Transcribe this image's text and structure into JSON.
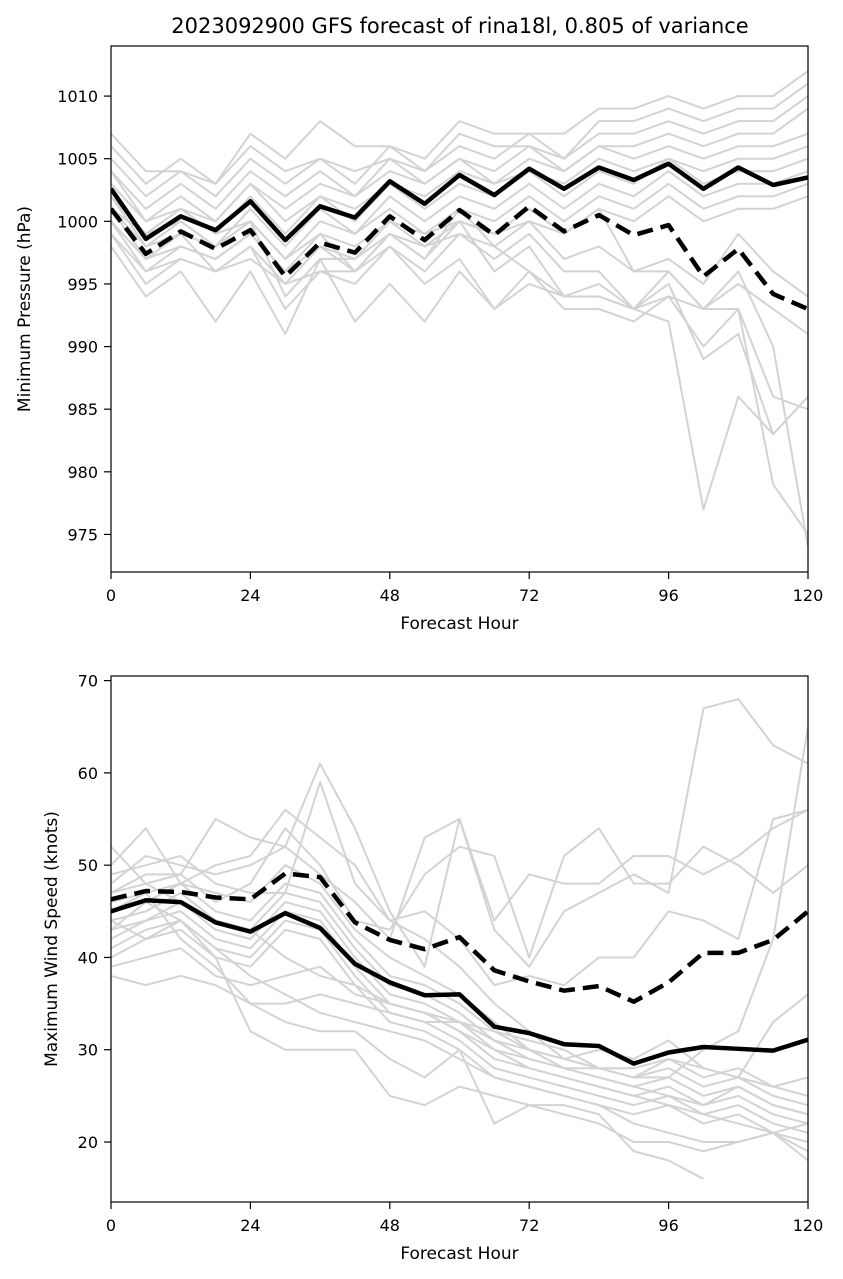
{
  "figure": {
    "title": "2023092900 GFS forecast of rina18l, 0.805 of variance"
  },
  "colors": {
    "ensemble_member": "#d3d3d3",
    "mean": "#000000",
    "dashed": "#000000"
  },
  "chart_data": [
    {
      "type": "line",
      "title": "2023092900 GFS forecast of rina18l, 0.805 of variance",
      "xlabel": "Forecast Hour",
      "ylabel": "Minimum Pressure (hPa)",
      "xlim": [
        0,
        120
      ],
      "ylim": [
        972,
        1014
      ],
      "xticks": [
        0,
        24,
        48,
        72,
        96,
        120
      ],
      "yticks": [
        975,
        980,
        985,
        990,
        995,
        1000,
        1005,
        1010
      ],
      "grid": false,
      "x": [
        0,
        6,
        12,
        18,
        24,
        30,
        36,
        42,
        48,
        54,
        60,
        66,
        72,
        78,
        84,
        90,
        96,
        102,
        108,
        114,
        120
      ],
      "series": [
        {
          "style": "solid",
          "values": [
            1002.6,
            998.6,
            1000.4,
            999.3,
            1001.6,
            998.5,
            1001.2,
            1000.3,
            1003.2,
            1001.4,
            1003.7,
            1002.1,
            1004.2,
            1002.6,
            1004.3,
            1003.3,
            1004.6,
            1002.6,
            1004.3,
            1002.9,
            1003.5
          ]
        },
        {
          "style": "dashed",
          "values": [
            1001.0,
            997.4,
            999.2,
            997.8,
            999.3,
            995.6,
            998.3,
            997.5,
            1000.4,
            998.5,
            1000.9,
            998.9,
            1001.2,
            999.2,
            1000.5,
            998.9,
            999.7,
            995.6,
            997.8,
            994.2,
            993.0
          ]
        },
        {
          "style": "member",
          "values": [
            1007,
            1004,
            1004,
            1003,
            1007,
            1005,
            1008,
            1006,
            1006,
            1005,
            1008,
            1007,
            1007,
            1007,
            1009,
            1009,
            1010,
            1009,
            1010,
            1010,
            1012
          ]
        },
        {
          "style": "member",
          "values": [
            1006,
            1003,
            1005,
            1003,
            1006,
            1004,
            1005,
            1004,
            1005,
            1004,
            1007,
            1006,
            1006,
            1005,
            1008,
            1008,
            1009,
            1008,
            1009,
            1009,
            1011
          ]
        },
        {
          "style": "member",
          "values": [
            1005,
            1002,
            1004,
            1002,
            1005,
            1003,
            1005,
            1003,
            1006,
            1004,
            1006,
            1005,
            1007,
            1005,
            1007,
            1007,
            1008,
            1007,
            1008,
            1008,
            1010
          ]
        },
        {
          "style": "member",
          "values": [
            1004,
            1001,
            1003,
            1001,
            1004,
            1002,
            1004,
            1002,
            1005,
            1003,
            1005,
            1004,
            1006,
            1004,
            1006,
            1006,
            1007,
            1006,
            1007,
            1007,
            1009
          ]
        },
        {
          "style": "member",
          "values": [
            1004,
            1000,
            1002,
            1000,
            1003,
            1001,
            1003,
            1002,
            1004,
            1003,
            1005,
            1003,
            1005,
            1004,
            1006,
            1005,
            1006,
            1005,
            1006,
            1006,
            1007
          ]
        },
        {
          "style": "member",
          "values": [
            1003,
            1000,
            1001,
            1000,
            1003,
            1000,
            1002,
            1001,
            1003,
            1002,
            1004,
            1003,
            1004,
            1003,
            1005,
            1004,
            1005,
            1004,
            1005,
            1005,
            1006
          ]
        },
        {
          "style": "member",
          "values": [
            1002,
            999,
            1001,
            999,
            1002,
            999,
            1002,
            1000,
            1003,
            1001,
            1003,
            1002,
            1004,
            1002,
            1004,
            1003,
            1005,
            1003,
            1004,
            1004,
            1005
          ]
        },
        {
          "style": "member",
          "values": [
            1001,
            998,
            1000,
            998,
            1001,
            998,
            1001,
            999,
            1002,
            1000,
            1002,
            1001,
            1003,
            1001,
            1003,
            1002,
            1004,
            1002,
            1003,
            1003,
            1004
          ]
        },
        {
          "style": "member",
          "values": [
            1000,
            997,
            999,
            998,
            1000,
            997,
            1000,
            999,
            1001,
            999,
            1001,
            1000,
            1002,
            1000,
            1002,
            1001,
            1003,
            1001,
            1002,
            1002,
            1003
          ]
        },
        {
          "style": "member",
          "values": [
            1000,
            996,
            998,
            997,
            999,
            996,
            999,
            998,
            1000,
            999,
            1000,
            999,
            1001,
            999,
            1001,
            1000,
            1002,
            1000,
            1001,
            1001,
            1002
          ]
        },
        {
          "style": "member",
          "values": [
            1001,
            999,
            1000,
            998,
            1000,
            994,
            997,
            997,
            999,
            997,
            1000,
            996,
            998,
            994,
            995,
            993,
            994,
            990,
            993,
            986,
            985
          ]
        },
        {
          "style": "member",
          "values": [
            1002,
            998,
            999,
            996,
            998,
            993,
            996,
            995,
            998,
            996,
            999,
            998,
            996,
            994,
            994,
            993,
            995,
            989,
            991,
            983,
            986
          ]
        },
        {
          "style": "member",
          "values": [
            999,
            996,
            997,
            996,
            997,
            995,
            996,
            996,
            998,
            995,
            997,
            993,
            996,
            993,
            993,
            992,
            994,
            993,
            993,
            979,
            975
          ]
        },
        {
          "style": "member",
          "values": [
            998,
            994,
            996,
            992,
            996,
            991,
            997,
            992,
            995,
            992,
            996,
            993,
            995,
            994,
            994,
            993,
            992,
            977,
            986,
            983,
            986
          ]
        },
        {
          "style": "member",
          "values": [
            1001,
            997,
            998,
            997,
            999,
            996,
            998,
            997,
            1000,
            998,
            1000,
            999,
            1000,
            999,
            1001,
            996,
            996,
            993,
            996,
            990,
            974
          ]
        },
        {
          "style": "member",
          "values": [
            1002,
            999,
            1001,
            999,
            1000,
            997,
            999,
            996,
            999,
            997,
            1001,
            998,
            1000,
            997,
            998,
            996,
            997,
            995,
            999,
            996,
            994
          ]
        },
        {
          "style": "member",
          "values": [
            999,
            995,
            997,
            996,
            998,
            995,
            998,
            996,
            999,
            998,
            999,
            997,
            999,
            996,
            996,
            993,
            996,
            993,
            995,
            993,
            991
          ]
        }
      ]
    },
    {
      "type": "line",
      "xlabel": "Forecast Hour",
      "ylabel": "Maximum Wind Speed (knots)",
      "xlim": [
        0,
        120
      ],
      "ylim": [
        13.5,
        70.5
      ],
      "xticks": [
        0,
        24,
        48,
        72,
        96,
        120
      ],
      "yticks": [
        20,
        30,
        40,
        50,
        60,
        70
      ],
      "grid": false,
      "x": [
        0,
        6,
        12,
        18,
        24,
        30,
        36,
        42,
        48,
        54,
        60,
        66,
        72,
        78,
        84,
        90,
        96,
        102,
        108,
        114,
        120
      ],
      "series": [
        {
          "style": "solid",
          "values": [
            45.0,
            46.2,
            46.0,
            43.8,
            42.8,
            44.8,
            43.2,
            39.3,
            37.3,
            35.9,
            36.0,
            32.5,
            31.8,
            30.6,
            30.4,
            28.5,
            29.7,
            30.3,
            30.1,
            29.9,
            31.1
          ]
        },
        {
          "style": "dashed",
          "values": [
            46.3,
            47.2,
            47.1,
            46.5,
            46.3,
            49.1,
            48.7,
            43.8,
            41.9,
            40.9,
            42.2,
            38.6,
            37.4,
            36.4,
            36.9,
            35.2,
            37.3,
            40.5,
            40.5,
            41.9,
            45.0
          ]
        },
        {
          "style": "member",
          "values": [
            52,
            48,
            49,
            55,
            53,
            52,
            61,
            54,
            45,
            39,
            55,
            43,
            39,
            45,
            47,
            49,
            47,
            67,
            68,
            63,
            61
          ]
        },
        {
          "style": "member",
          "values": [
            50,
            54,
            48,
            50,
            51,
            56,
            53,
            50,
            44,
            42,
            39,
            35,
            32,
            29,
            28,
            27,
            27,
            30,
            32,
            42,
            65
          ]
        },
        {
          "style": "member",
          "values": [
            49,
            50,
            51,
            48,
            47,
            47,
            59,
            48,
            44,
            45,
            42,
            37,
            38,
            37,
            40,
            40,
            45,
            44,
            42,
            55,
            56
          ]
        },
        {
          "style": "member",
          "values": [
            48,
            51,
            50,
            49,
            50,
            52,
            49,
            46,
            42,
            53,
            55,
            44,
            49,
            48,
            48,
            51,
            51,
            49,
            51,
            54,
            56
          ]
        },
        {
          "style": "member",
          "values": [
            47,
            49,
            49,
            46,
            48,
            54,
            50,
            44,
            43,
            49,
            52,
            51,
            40,
            51,
            54,
            48,
            48,
            52,
            50,
            47,
            50
          ]
        },
        {
          "style": "member",
          "values": [
            46,
            47,
            48,
            47,
            46,
            50,
            48,
            43,
            40,
            38,
            36,
            33,
            30,
            29,
            30,
            29,
            31,
            28,
            27,
            33,
            36
          ]
        },
        {
          "style": "member",
          "values": [
            45,
            46,
            48,
            45,
            44,
            48,
            47,
            42,
            38,
            37,
            35,
            32,
            31,
            30,
            28,
            28,
            29,
            27,
            28,
            26,
            25
          ]
        },
        {
          "style": "member",
          "values": [
            44,
            45,
            47,
            44,
            43,
            47,
            46,
            41,
            37,
            36,
            34,
            31,
            30,
            29,
            28,
            27,
            28,
            26,
            27,
            25,
            24
          ]
        },
        {
          "style": "member",
          "values": [
            43,
            44,
            46,
            43,
            42,
            46,
            45,
            40,
            36,
            35,
            33,
            30,
            29,
            28,
            27,
            26,
            27,
            25,
            26,
            24,
            23
          ]
        },
        {
          "style": "member",
          "values": [
            42,
            44,
            45,
            42,
            41,
            45,
            44,
            39,
            35,
            34,
            32,
            29,
            28,
            27,
            26,
            25,
            26,
            24,
            25,
            23,
            22
          ]
        },
        {
          "style": "member",
          "values": [
            41,
            43,
            44,
            41,
            40,
            44,
            43,
            38,
            34,
            33,
            31,
            28,
            27,
            26,
            25,
            24,
            25,
            23,
            24,
            22,
            21
          ]
        },
        {
          "style": "member",
          "values": [
            40,
            42,
            43,
            40,
            39,
            43,
            42,
            37,
            33,
            32,
            30,
            27,
            26,
            25,
            24,
            23,
            24,
            22,
            23,
            21,
            20
          ]
        },
        {
          "style": "member",
          "values": [
            38,
            37,
            38,
            37,
            35,
            35,
            36,
            35,
            34,
            33,
            33,
            32,
            30,
            28,
            27,
            26,
            25,
            24,
            26,
            24,
            23
          ]
        },
        {
          "style": "member",
          "values": [
            39,
            40,
            41,
            38,
            37,
            38,
            39,
            36,
            35,
            34,
            32,
            30,
            28,
            27,
            26,
            25,
            24,
            23,
            22,
            21,
            19
          ]
        },
        {
          "style": "member",
          "values": [
            44,
            42,
            44,
            40,
            32,
            30,
            30,
            30,
            25,
            24,
            26,
            25,
            24,
            23,
            22,
            20,
            20,
            19,
            20,
            21,
            18
          ]
        },
        {
          "style": "member",
          "values": [
            45,
            47,
            42,
            39,
            35,
            33,
            32,
            32,
            29,
            27,
            30,
            22,
            24,
            24,
            23,
            19,
            18,
            16,
            null,
            null,
            null
          ]
        },
        {
          "style": "member",
          "values": [
            43,
            46,
            44,
            41,
            38,
            36,
            34,
            33,
            32,
            31,
            29,
            27,
            26,
            25,
            24,
            22,
            21,
            20,
            20,
            21,
            22
          ]
        },
        {
          "style": "member",
          "values": [
            47,
            48,
            46,
            44,
            43,
            40,
            38,
            37,
            35,
            34,
            33,
            31,
            29,
            28,
            28,
            27,
            29,
            28,
            27,
            26,
            27
          ]
        }
      ]
    }
  ]
}
